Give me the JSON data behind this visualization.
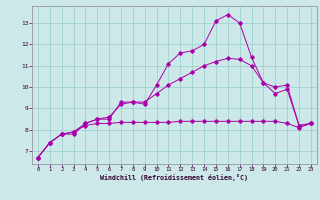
{
  "xlabel": "Windchill (Refroidissement éolien,°C)",
  "bg_color": "#cce8e8",
  "line_color": "#aa00aa",
  "grid_color": "#99cccc",
  "x_ticks": [
    0,
    1,
    2,
    3,
    4,
    5,
    6,
    7,
    8,
    9,
    10,
    11,
    12,
    13,
    14,
    15,
    16,
    17,
    18,
    19,
    20,
    21,
    22,
    23
  ],
  "y_ticks": [
    7,
    8,
    9,
    10,
    11,
    12,
    13
  ],
  "ylim": [
    6.4,
    13.8
  ],
  "xlim": [
    -0.5,
    23.5
  ],
  "curve1_x": [
    0,
    1,
    2,
    3,
    4,
    5,
    6,
    7,
    8,
    9,
    10,
    11,
    12,
    13,
    14,
    15,
    16,
    17,
    18,
    19,
    20,
    21,
    22,
    23
  ],
  "curve1_y": [
    6.7,
    7.4,
    7.8,
    7.8,
    8.3,
    8.5,
    8.5,
    9.3,
    9.3,
    9.2,
    10.1,
    11.1,
    11.6,
    11.7,
    12.0,
    13.1,
    13.4,
    13.0,
    11.4,
    10.2,
    10.0,
    10.1,
    8.2,
    8.3
  ],
  "curve2_x": [
    0,
    1,
    2,
    3,
    4,
    5,
    6,
    7,
    8,
    9,
    10,
    11,
    12,
    13,
    14,
    15,
    16,
    17,
    18,
    19,
    20,
    21,
    22,
    23
  ],
  "curve2_y": [
    6.7,
    7.4,
    7.8,
    7.9,
    8.3,
    8.5,
    8.6,
    9.2,
    9.3,
    9.3,
    9.7,
    10.1,
    10.4,
    10.7,
    11.0,
    11.2,
    11.35,
    11.3,
    11.0,
    10.2,
    9.7,
    9.9,
    8.2,
    8.3
  ],
  "curve3_x": [
    0,
    1,
    2,
    3,
    4,
    5,
    6,
    7,
    8,
    9,
    10,
    11,
    12,
    13,
    14,
    15,
    16,
    17,
    18,
    19,
    20,
    21,
    22,
    23
  ],
  "curve3_y": [
    6.7,
    7.4,
    7.8,
    7.9,
    8.2,
    8.3,
    8.3,
    8.35,
    8.35,
    8.35,
    8.35,
    8.35,
    8.4,
    8.4,
    8.4,
    8.4,
    8.4,
    8.4,
    8.4,
    8.4,
    8.4,
    8.3,
    8.1,
    8.3
  ]
}
